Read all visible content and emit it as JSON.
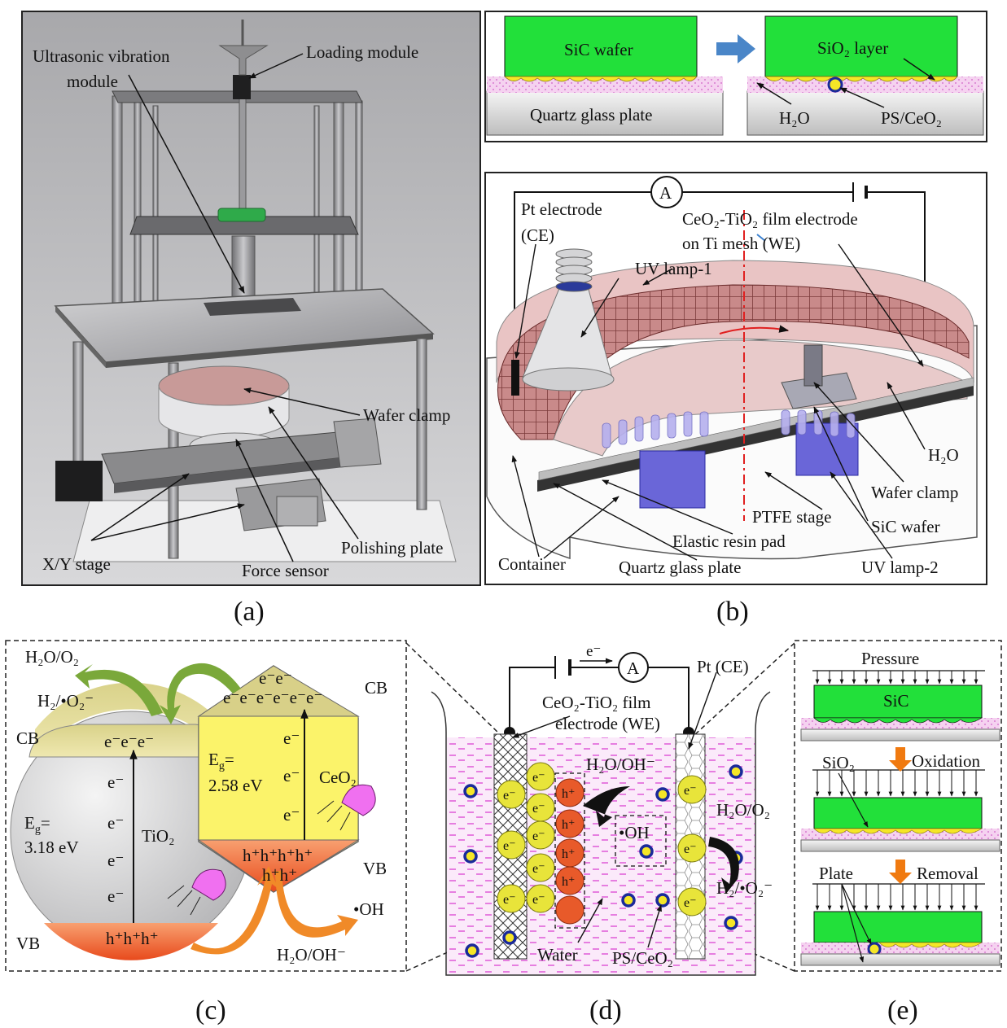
{
  "panel_a": {
    "caption": "(a)",
    "labels": {
      "ultrasonic_1": "Ultrasonic vibration",
      "ultrasonic_2": "module",
      "loading": "Loading module",
      "wafer_clamp": "Wafer clamp",
      "polishing_plate": "Polishing plate",
      "xy_stage": "X/Y stage",
      "force_sensor": "Force sensor"
    }
  },
  "panel_b": {
    "caption": "(b)",
    "top": {
      "sic_wafer": "SiC wafer",
      "sio2_layer": "SiO₂ layer",
      "quartz": "Quartz glass plate",
      "h2o": "H₂O",
      "ps_ceo2": "PS/CeO₂"
    },
    "main": {
      "ammeter": "A",
      "pt_1": "Pt electrode",
      "pt_2": "(CE)",
      "film_1": "CeO₂-TiO₂ film electrode",
      "film_2": "on Ti mesh (WE)",
      "uv1": "UV lamp-1",
      "h2o": "H₂O",
      "wafer_clamp": "Wafer clamp",
      "ptfe": "PTFE stage",
      "sic": "SiC wafer",
      "resin": "Elastic resin pad",
      "container": "Container",
      "quartz": "Quartz glass plate",
      "uv2": "UV lamp-2"
    }
  },
  "panel_c": {
    "caption": "(c)",
    "h2o_o2": "H₂O/O₂",
    "h2_o2": "H₂/•O₂⁻",
    "cb_left": "CB",
    "cb_right": "CB",
    "vb_left": "VB",
    "vb_right": "VB",
    "e_row": "e⁻e⁻e⁻",
    "ceo2_e_top": "e⁻e⁻",
    "ceo2_e_mid": "e⁻e⁻e⁻e⁻e⁻e⁻",
    "electron": "e⁻",
    "eg_label": "E",
    "eg_sub": "g",
    "eg_eq": "=",
    "tio2_eg": "3.18 eV",
    "ceo2_eg": "2.58 eV",
    "tio2": "TiO₂",
    "ceo2": "CeO₂",
    "ceo2_h_top": "h⁺h⁺h⁺h⁺",
    "ceo2_h_bot": "h⁺h⁺",
    "tio2_h": "h⁺h⁺h⁺",
    "oh": "•OH",
    "h2o_oh": "H₂O/OH⁻"
  },
  "panel_d": {
    "caption": "(d)",
    "electron": "e⁻",
    "ammeter": "A",
    "pt_ce": "Pt (CE)",
    "film_1": "CeO₂-TiO₂ film",
    "film_2": "electrode (WE)",
    "h2o_oh": "H₂O/OH⁻",
    "oh": "•OH",
    "h2o_o2": "H₂O/O₂",
    "h2_o2": "H₂/•O₂⁻",
    "water": "Water",
    "ps_ceo2": "PS/CeO₂",
    "e_particle": "e⁻",
    "h_particle": "h⁺"
  },
  "panel_e": {
    "caption": "(e)",
    "pressure": "Pressure",
    "sic": "SiC",
    "sio2": "SiO₂",
    "oxidation": "Oxidation",
    "plate": "Plate",
    "removal": "Removal"
  },
  "colors": {
    "green": "#22e03a",
    "pink": "#f3c6ee",
    "yellow": "#f5e627",
    "orange": "#ef6a2e",
    "red_particle": "#e85a2a",
    "yellow_particle": "#e8e43a",
    "arrow_blue": "#4a86c8",
    "arrow_green": "#7aa83a",
    "arrow_orange": "#f08a28",
    "blue_ring": "#1a2a9a"
  }
}
